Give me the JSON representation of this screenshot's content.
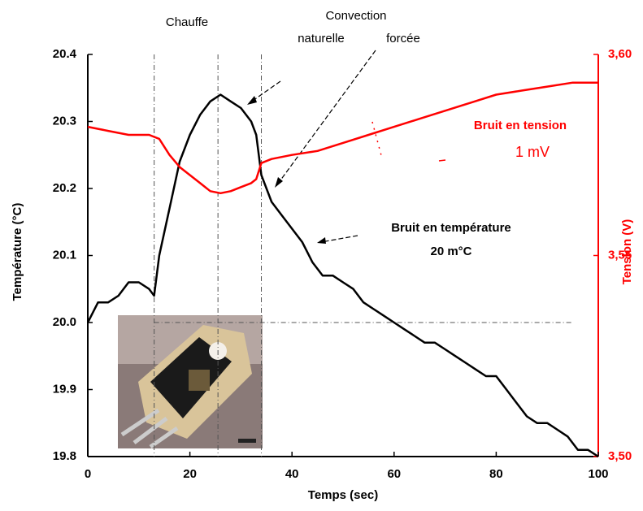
{
  "chart_data": {
    "type": "line",
    "x_label": "Temps (sec)",
    "y_label": "Température (°C)",
    "y2_label": "Tension (V)",
    "annotations": [
      "Chauffe",
      "Convection",
      "naturelle",
      "forcée",
      "Bruit en tension",
      "1 mV",
      "Bruit en température",
      "20 m°C"
    ],
    "xlim": [
      0,
      100
    ],
    "xticks": [
      0,
      20,
      40,
      60,
      80,
      100
    ],
    "ylim": [
      19.8,
      20.4
    ],
    "yticks": [
      19.8,
      19.9,
      {
        "value": 20,
        "label": "20.0"
      },
      20.1,
      20.2,
      20.3,
      20.4
    ],
    "y2lim": [
      3.5,
      3.6
    ],
    "y2ticks": [
      {
        "value": 3.5,
        "label": "3,50"
      },
      {
        "value": 3.55,
        "label": "3,55"
      },
      {
        "value": 3.6,
        "label": "3,60"
      }
    ],
    "vlines": [
      13,
      25.5,
      34
    ],
    "hline": 20,
    "series": [
      {
        "color": "#000000",
        "x": [
          0,
          2,
          4,
          6,
          8,
          10,
          12,
          13,
          14,
          16,
          18,
          20,
          22,
          24,
          26,
          28,
          30,
          32,
          33,
          34,
          36,
          38,
          40,
          42,
          44,
          46,
          48,
          50,
          52,
          54,
          56,
          58,
          60,
          62,
          64,
          66,
          68,
          70,
          72,
          74,
          76,
          78,
          80,
          82,
          84,
          86,
          88,
          90,
          92,
          94,
          96,
          98,
          100
        ],
        "values": [
          20.0,
          20.03,
          20.03,
          20.04,
          20.06,
          20.06,
          20.05,
          20.04,
          20.1,
          20.17,
          20.24,
          20.28,
          20.31,
          20.33,
          20.34,
          20.33,
          20.32,
          20.3,
          20.28,
          20.22,
          20.18,
          20.16,
          20.14,
          20.12,
          20.09,
          20.07,
          20.07,
          20.06,
          20.05,
          20.03,
          20.02,
          20.01,
          20.0,
          19.99,
          19.98,
          19.97,
          19.97,
          19.96,
          19.95,
          19.94,
          19.93,
          19.92,
          19.92,
          19.9,
          19.88,
          19.86,
          19.85,
          19.85,
          19.84,
          19.83,
          19.81,
          19.81,
          19.8
        ]
      },
      {
        "color": "#ff0000",
        "axis": "y2",
        "x": [
          0,
          4,
          8,
          12,
          14,
          16,
          18,
          20,
          22,
          24,
          26,
          28,
          30,
          32,
          33,
          34,
          36,
          40,
          45,
          50,
          55,
          60,
          65,
          70,
          75,
          80,
          85,
          90,
          95,
          100
        ],
        "values": [
          3.582,
          3.581,
          3.58,
          3.58,
          3.579,
          3.575,
          3.572,
          3.57,
          3.568,
          3.566,
          3.5655,
          3.566,
          3.567,
          3.568,
          3.569,
          3.573,
          3.574,
          3.575,
          3.576,
          3.578,
          3.58,
          3.582,
          3.584,
          3.586,
          3.588,
          3.59,
          3.591,
          3.592,
          3.593,
          3.593
        ]
      }
    ]
  }
}
